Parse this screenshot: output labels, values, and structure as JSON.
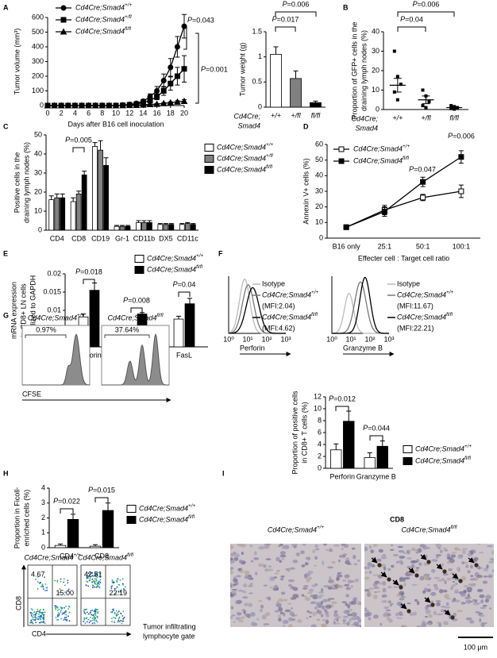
{
  "panel_labels": [
    "A",
    "B",
    "C",
    "D",
    "E",
    "F",
    "G",
    "H",
    "I"
  ],
  "chart_data": [
    {
      "type": "line",
      "ylabel": [
        "Tumor volume (mm³)"
      ],
      "xlabel": "Days after B16 cell inoculation",
      "x": [
        0,
        1,
        2,
        3,
        4,
        5,
        6,
        7,
        8,
        9,
        10,
        11,
        12,
        13,
        14,
        15,
        16,
        17,
        18,
        19,
        20
      ],
      "xlim": [
        0,
        20
      ],
      "xticks": [
        0,
        2,
        4,
        6,
        8,
        10,
        12,
        14,
        16,
        18,
        20
      ],
      "ylim": [
        0,
        600
      ],
      "yticks": [
        0,
        100,
        200,
        300,
        400,
        500,
        600
      ],
      "series": [
        {
          "name": "Cd4Cre;Smad4+/+",
          "color": "#000000",
          "marker": "circle",
          "values": [
            0,
            0,
            0,
            0,
            0,
            0,
            0,
            0,
            0,
            0,
            0,
            3,
            8,
            15,
            30,
            60,
            100,
            170,
            260,
            400,
            540
          ],
          "errors": [
            null,
            null,
            null,
            null,
            null,
            null,
            null,
            null,
            null,
            null,
            null,
            3,
            5,
            8,
            12,
            20,
            30,
            45,
            60,
            70,
            80
          ]
        },
        {
          "name": "Cd4Cre;Smad4+/fl",
          "color": "#000000",
          "marker": "square",
          "values": [
            0,
            0,
            0,
            0,
            0,
            0,
            0,
            0,
            0,
            0,
            0,
            2,
            5,
            10,
            20,
            35,
            60,
            100,
            150,
            200,
            250
          ],
          "errors": [
            null,
            null,
            null,
            null,
            null,
            null,
            null,
            null,
            null,
            null,
            null,
            2,
            3,
            5,
            8,
            12,
            20,
            30,
            45,
            60,
            90
          ]
        },
        {
          "name": "Cd4Cre;Smad4fl/fl",
          "color": "#000000",
          "marker": "triangle",
          "values": [
            0,
            0,
            0,
            0,
            0,
            0,
            0,
            0,
            0,
            0,
            0,
            1,
            2,
            3,
            5,
            8,
            10,
            15,
            20,
            25,
            30
          ],
          "errors": [
            null,
            null,
            null,
            null,
            null,
            null,
            null,
            null,
            null,
            null,
            null,
            1,
            1,
            2,
            2,
            3,
            4,
            5,
            6,
            8,
            10
          ]
        }
      ],
      "annotations": [
        "P=0.043",
        "P=0.001"
      ]
    },
    {
      "type": "bar",
      "ylabel": [
        "Tumor weight (g)"
      ],
      "xlabel": [
        "Cd4Cre;",
        "Smad4"
      ],
      "categories": [
        "+/+",
        "+/fl",
        "fl/fl"
      ],
      "values": [
        1.05,
        0.57,
        0.09
      ],
      "errors": [
        0.15,
        0.15,
        0.03
      ],
      "colors": [
        "#ffffff",
        "#808080",
        "#000000"
      ],
      "ylim": [
        0,
        1.5
      ],
      "yticks": [
        0,
        0.5,
        1,
        1.5
      ],
      "annotations": [
        "P=0.006",
        "P=0.017"
      ]
    },
    {
      "type": "dot",
      "ylabel": [
        "Proportion of GFP+ cells in the",
        "draining lymph nodes (%)"
      ],
      "xlabel": [
        "Cd4Cre;",
        "Smad4"
      ],
      "categories": [
        "+/+",
        "+/fl",
        "fl/fl"
      ],
      "points": [
        [
          30,
          17,
          13,
          9,
          5
        ],
        [
          10,
          7,
          4,
          2,
          1
        ],
        [
          2,
          1.5,
          1,
          0.5,
          0.2
        ]
      ],
      "means": [
        12.5,
        5,
        1
      ],
      "errors": [
        3.5,
        2,
        0.4
      ],
      "ylim": [
        0,
        40
      ],
      "yticks": [
        0,
        10,
        20,
        30,
        40
      ],
      "annotations": [
        "P=0.006",
        "P=0.04"
      ]
    },
    {
      "type": "bar",
      "ylabel": [
        "Positive cells in the",
        "draining lymph nodes (%)"
      ],
      "categories": [
        "CD4",
        "CD8",
        "CD19",
        "Gr-1",
        "CD11b",
        "DX5",
        "CD11c"
      ],
      "series": [
        {
          "name": "Cd4Cre;Smad4+/+",
          "color": "#ffffff",
          "values": [
            16,
            15,
            44,
            2,
            4,
            3,
            3
          ],
          "errors": [
            2,
            2,
            2,
            0.5,
            1,
            0.5,
            0.5
          ]
        },
        {
          "name": "Cd4Cre;Smad4+/fl",
          "color": "#808080",
          "values": [
            17,
            19,
            42,
            2,
            4,
            3,
            3.5
          ],
          "errors": [
            2,
            1.5,
            5,
            0.5,
            1,
            0.5,
            0.5
          ]
        },
        {
          "name": "Cd4Cre;Smad4fl/fl",
          "color": "#000000",
          "values": [
            17,
            29,
            34,
            2,
            4,
            3,
            3
          ],
          "errors": [
            2,
            2,
            4,
            0.5,
            1,
            0.5,
            0.5
          ]
        }
      ],
      "ylim": [
        0,
        50
      ],
      "yticks": [
        0,
        10,
        20,
        30,
        40,
        50
      ],
      "annotations": [
        "P=0.005"
      ]
    },
    {
      "type": "line",
      "ylabel": [
        "Annexin V+ cells (%)"
      ],
      "xlabel": "Effecter cell : Target cell ratio",
      "categories": [
        "B16 only",
        "25:1",
        "50:1",
        "100:1"
      ],
      "series": [
        {
          "name": "Cd4Cre;Smad4+/+",
          "color": "#ffffff",
          "marker": "square",
          "values": [
            7,
            18,
            26,
            30
          ],
          "errors": [
            1,
            3,
            2,
            4
          ]
        },
        {
          "name": "Cd4Cre;Smad4fl/fl",
          "color": "#000000",
          "marker": "square",
          "values": [
            7,
            17,
            36,
            52
          ],
          "errors": [
            1,
            3,
            3,
            4
          ]
        }
      ],
      "ylim": [
        0,
        60
      ],
      "yticks": [
        0,
        10,
        20,
        30,
        40,
        50,
        60
      ],
      "annotations": [
        "P=0.047",
        "P=0.006"
      ]
    },
    {
      "type": "bar",
      "ylabel": [
        "mRNA expression",
        "in CD8+ LN cells",
        "normalized to GAPDH"
      ],
      "categories": [
        "Perforin",
        "Granzyme B",
        "FasL"
      ],
      "series": [
        {
          "name": "Cd4Cre;Smad4+/+",
          "color": "#ffffff",
          "values": [
            0.0082,
            0.0054,
            0.0076
          ],
          "errors": [
            0.0008,
            0.0003,
            0.0008
          ]
        },
        {
          "name": "Cd4Cre;Smad4fl/fl",
          "color": "#000000",
          "values": [
            0.0155,
            0.009,
            0.0118
          ],
          "errors": [
            0.002,
            0.0004,
            0.0015
          ]
        }
      ],
      "ylim": [
        0,
        0.02
      ],
      "yticks": [
        0,
        0.005,
        0.01,
        0.015,
        0.02
      ],
      "annotations": [
        "P=0.018",
        "P=0.008",
        "P=0.04"
      ]
    },
    {
      "type": "bar",
      "ylabel": [
        "Proportion of positive cells",
        "in CD8+ T cells (%)"
      ],
      "categories": [
        "Perforin",
        "Granzyme B"
      ],
      "series": [
        {
          "name": "Cd4Cre;Smad4+/+",
          "color": "#ffffff",
          "values": [
            3.1,
            1.8
          ],
          "errors": [
            1,
            0.8
          ]
        },
        {
          "name": "Cd4Cre;Smad4fl/fl",
          "color": "#000000",
          "values": [
            7.9,
            3.7
          ],
          "errors": [
            1.7,
            0.9
          ]
        }
      ],
      "ylim": [
        0,
        12
      ],
      "yticks": [
        0,
        2,
        4,
        6,
        8,
        10,
        12
      ],
      "annotations": [
        "P=0.012",
        "P=0.044"
      ]
    },
    {
      "type": "bar",
      "ylabel": [
        "Proportion in Ficoll-",
        "enriched cells (%)"
      ],
      "categories": [
        "CD4",
        "CD8"
      ],
      "series": [
        {
          "name": "Cd4Cre;Smad4+/+",
          "color": "#ffffff",
          "values": [
            0.15,
            0.1
          ],
          "errors": [
            0.1,
            0.1
          ]
        },
        {
          "name": "Cd4Cre;Smad4fl/fl",
          "color": "#000000",
          "values": [
            1.9,
            2.5
          ],
          "errors": [
            0.35,
            0.5
          ]
        }
      ],
      "ylim": [
        0,
        4
      ],
      "yticks": [
        0,
        1,
        2,
        3,
        4
      ],
      "annotations": [
        "P=0.022",
        "P=0.015"
      ]
    }
  ],
  "flow_histograms": {
    "panels": [
      {
        "legend": [
          "Isotype",
          "Cd4Cre;Smad4+/+",
          "(MFI:2.04)",
          "Cd4Cre;Smad4fl/fl",
          "(MFI:4.62)"
        ],
        "xlabel": "Perforin"
      },
      {
        "legend": [
          "Isotype",
          "Cd4Cre;Smad4+/+",
          "(MFI:11.67)",
          "Cd4Cre;Smad4fl/fl",
          "(MFI:22.21)"
        ],
        "xlabel": "Granzyme B"
      }
    ],
    "xtick_labels": [
      "10⁰",
      "10¹",
      "10²",
      "10³"
    ]
  },
  "cfse": {
    "titles": [
      "Cd4Cre;Smad4+/+",
      "Cd4Cre;Smad4fl/fl"
    ],
    "gates": [
      "0.97%",
      "37.64%"
    ],
    "xlabel": "CFSE"
  },
  "flow_plots": {
    "titles": [
      "Cd4Cre;Smad4+/+",
      "Cd4Cre;Smad4fl/fl"
    ],
    "quadrants": [
      [
        "4.67",
        "15.00"
      ],
      [
        "42.51",
        "22.19"
      ]
    ],
    "ylabel": "CD8",
    "xlabel": "CD4",
    "gate_label": [
      "Tumor infiltrating",
      "lymphocyte gate"
    ]
  },
  "histology": {
    "titles": [
      "Cd4Cre;Smad4+/+",
      "Cd4Cre;Smad4fl/fl"
    ],
    "stain": "CD8",
    "scale_bar": "100 μm"
  }
}
